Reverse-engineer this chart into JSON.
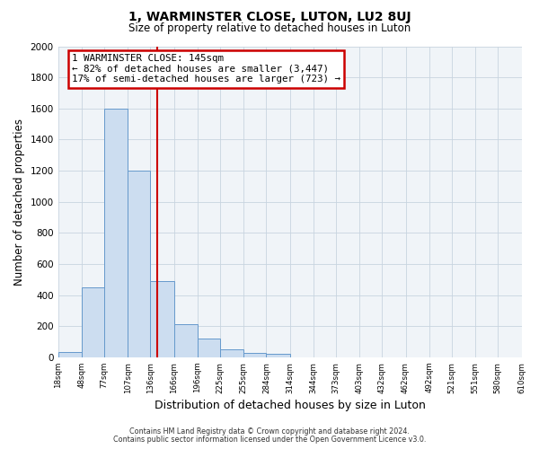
{
  "title": "1, WARMINSTER CLOSE, LUTON, LU2 8UJ",
  "subtitle": "Size of property relative to detached houses in Luton",
  "xlabel": "Distribution of detached houses by size in Luton",
  "ylabel": "Number of detached properties",
  "bar_edges": [
    18,
    48,
    77,
    107,
    136,
    166,
    196,
    225,
    255,
    284,
    314,
    344,
    373,
    403,
    432,
    462,
    492,
    521,
    551,
    580,
    610
  ],
  "bar_heights": [
    35,
    450,
    1600,
    1200,
    490,
    210,
    120,
    50,
    30,
    20,
    0,
    0,
    0,
    0,
    0,
    0,
    0,
    0,
    0,
    0
  ],
  "bar_color": "#ccddf0",
  "bar_edgecolor": "#6699cc",
  "property_size": 145,
  "vline_color": "#cc0000",
  "annotation_box_edgecolor": "#cc0000",
  "annotation_title": "1 WARMINSTER CLOSE: 145sqm",
  "annotation_line1": "← 82% of detached houses are smaller (3,447)",
  "annotation_line2": "17% of semi-detached houses are larger (723) →",
  "ylim": [
    0,
    2000
  ],
  "yticks": [
    0,
    200,
    400,
    600,
    800,
    1000,
    1200,
    1400,
    1600,
    1800,
    2000
  ],
  "tick_labels": [
    "18sqm",
    "48sqm",
    "77sqm",
    "107sqm",
    "136sqm",
    "166sqm",
    "196sqm",
    "225sqm",
    "255sqm",
    "284sqm",
    "314sqm",
    "344sqm",
    "373sqm",
    "403sqm",
    "432sqm",
    "462sqm",
    "492sqm",
    "521sqm",
    "551sqm",
    "580sqm",
    "610sqm"
  ],
  "footer_line1": "Contains HM Land Registry data © Crown copyright and database right 2024.",
  "footer_line2": "Contains public sector information licensed under the Open Government Licence v3.0.",
  "bg_color": "#ffffff",
  "plot_bg_color": "#f0f4f8",
  "grid_color": "#c8d4e0"
}
